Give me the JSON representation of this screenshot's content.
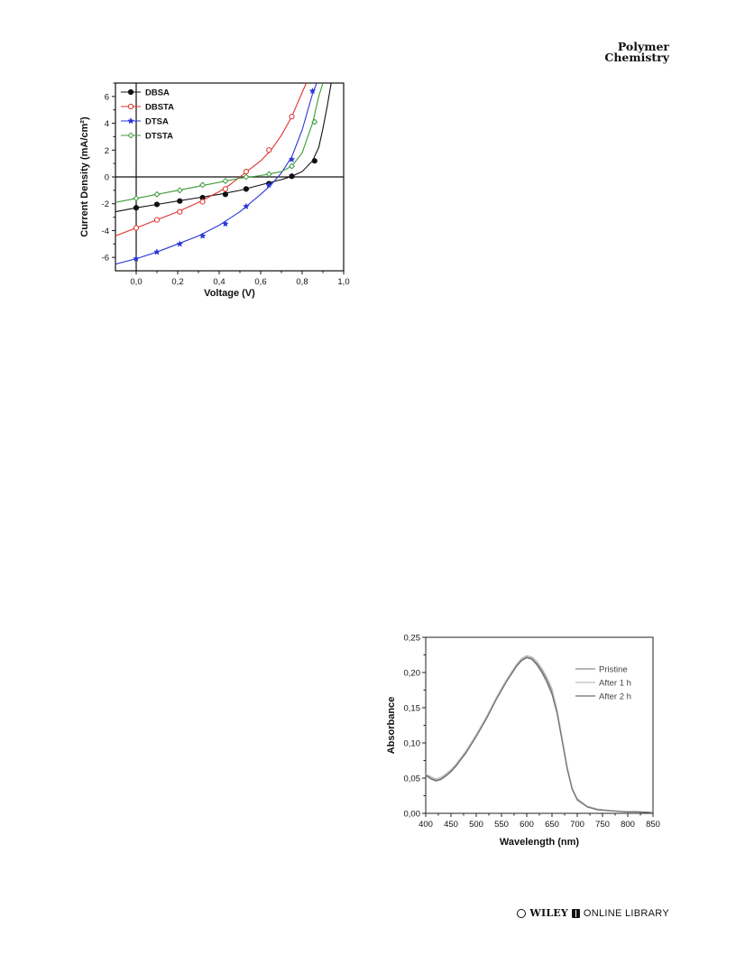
{
  "header": {
    "journal_line1": "Polymer",
    "journal_line2": "Chemistry"
  },
  "footer": {
    "publisher": "WILEY",
    "library": "ONLINE LIBRARY"
  },
  "chart_data": [
    {
      "type": "line",
      "xlabel": "Voltage (V)",
      "ylabel": "Current Density (mA/cm²)",
      "xlim": [
        -0.1,
        1.0
      ],
      "ylim": [
        -7,
        7
      ],
      "xticks": [
        "0,0",
        "0,2",
        "0,4",
        "0,6",
        "0,8",
        "1,0"
      ],
      "xtick_values": [
        0.0,
        0.2,
        0.4,
        0.6,
        0.8,
        1.0
      ],
      "yticks": [
        "-6",
        "-4",
        "-2",
        "0",
        "2",
        "4",
        "6"
      ],
      "ytick_values": [
        -6,
        -4,
        -2,
        0,
        2,
        4,
        6
      ],
      "legend_position": "top-left",
      "series": [
        {
          "name": "DBSA",
          "color": "#111111",
          "marker": "filled-circle",
          "x": [
            -0.1,
            0.0,
            0.1,
            0.2,
            0.3,
            0.4,
            0.5,
            0.6,
            0.65,
            0.7,
            0.75,
            0.8,
            0.85,
            0.88,
            0.9,
            0.92,
            0.94
          ],
          "y": [
            -2.6,
            -2.3,
            -2.05,
            -1.8,
            -1.55,
            -1.3,
            -1.0,
            -0.6,
            -0.4,
            -0.2,
            0.05,
            0.4,
            1.2,
            2.2,
            3.6,
            5.2,
            7.0
          ],
          "marker_x": [
            0.0,
            0.1,
            0.21,
            0.32,
            0.43,
            0.53,
            0.64,
            0.75,
            0.86
          ],
          "marker_y": [
            -2.3,
            -2.05,
            -1.8,
            -1.55,
            -1.3,
            -0.9,
            -0.5,
            0.05,
            1.2
          ]
        },
        {
          "name": "DBSTA",
          "color": "#e0312f",
          "marker": "open-circle",
          "x": [
            -0.1,
            0.0,
            0.1,
            0.2,
            0.3,
            0.4,
            0.45,
            0.5,
            0.55,
            0.6,
            0.65,
            0.7,
            0.75,
            0.8,
            0.82
          ],
          "y": [
            -4.4,
            -3.8,
            -3.2,
            -2.6,
            -1.9,
            -1.1,
            -0.6,
            0.0,
            0.6,
            1.2,
            2.0,
            3.1,
            4.5,
            6.3,
            7.0
          ],
          "marker_x": [
            0.0,
            0.1,
            0.21,
            0.32,
            0.43,
            0.53,
            0.64,
            0.75
          ],
          "marker_y": [
            -3.8,
            -3.2,
            -2.6,
            -1.85,
            -0.9,
            0.4,
            2.0,
            4.5
          ]
        },
        {
          "name": "DTSA",
          "color": "#2a36d8",
          "marker": "star",
          "x": [
            -0.1,
            0.0,
            0.1,
            0.2,
            0.3,
            0.4,
            0.5,
            0.6,
            0.65,
            0.7,
            0.75,
            0.8,
            0.85,
            0.87
          ],
          "y": [
            -6.5,
            -6.1,
            -5.6,
            -5.0,
            -4.4,
            -3.6,
            -2.6,
            -1.3,
            -0.6,
            0.3,
            1.5,
            3.5,
            6.2,
            7.0
          ],
          "marker_x": [
            0.0,
            0.1,
            0.21,
            0.32,
            0.43,
            0.53,
            0.64,
            0.75,
            0.85
          ],
          "marker_y": [
            -6.1,
            -5.6,
            -5.0,
            -4.4,
            -3.5,
            -2.2,
            -0.6,
            1.3,
            6.4
          ]
        },
        {
          "name": "DTSTA",
          "color": "#3f9a3a",
          "marker": "open-diamond",
          "x": [
            -0.1,
            0.0,
            0.1,
            0.2,
            0.3,
            0.4,
            0.5,
            0.6,
            0.7,
            0.75,
            0.8,
            0.85,
            0.88,
            0.9
          ],
          "y": [
            -1.9,
            -1.6,
            -1.3,
            -1.0,
            -0.7,
            -0.4,
            -0.1,
            0.1,
            0.4,
            0.8,
            1.8,
            4.0,
            6.0,
            7.0
          ],
          "marker_x": [
            0.0,
            0.1,
            0.21,
            0.32,
            0.43,
            0.53,
            0.64,
            0.75,
            0.86
          ],
          "marker_y": [
            -1.6,
            -1.3,
            -1.0,
            -0.6,
            -0.3,
            0.0,
            0.2,
            0.8,
            4.1
          ]
        }
      ]
    },
    {
      "type": "line",
      "xlabel": "Wavelength (nm)",
      "ylabel": "Absorbance",
      "xlim": [
        400,
        850
      ],
      "ylim": [
        0.0,
        0.25
      ],
      "xticks": [
        "400",
        "450",
        "500",
        "550",
        "600",
        "650",
        "700",
        "750",
        "800",
        "850"
      ],
      "xtick_values": [
        400,
        450,
        500,
        550,
        600,
        650,
        700,
        750,
        800,
        850
      ],
      "yticks": [
        "0,00",
        "0,05",
        "0,10",
        "0,15",
        "0,20",
        "0,25"
      ],
      "ytick_values": [
        0.0,
        0.05,
        0.1,
        0.15,
        0.2,
        0.25
      ],
      "legend_position": "top-right",
      "series": [
        {
          "name": "Pristine",
          "color": "#8a8a8a",
          "x": [
            400,
            410,
            420,
            430,
            440,
            450,
            460,
            480,
            500,
            520,
            540,
            560,
            580,
            590,
            600,
            610,
            620,
            630,
            640,
            650,
            660,
            670,
            680,
            690,
            700,
            720,
            740,
            760,
            780,
            800,
            820,
            850
          ],
          "y": [
            0.055,
            0.05,
            0.047,
            0.049,
            0.054,
            0.06,
            0.068,
            0.087,
            0.11,
            0.135,
            0.163,
            0.188,
            0.21,
            0.218,
            0.222,
            0.22,
            0.213,
            0.203,
            0.19,
            0.173,
            0.145,
            0.105,
            0.065,
            0.035,
            0.02,
            0.01,
            0.006,
            0.004,
            0.003,
            0.002,
            0.002,
            0.001
          ]
        },
        {
          "name": "After 1 h",
          "color": "#bdbdbd",
          "x": [
            400,
            410,
            420,
            430,
            440,
            450,
            460,
            480,
            500,
            520,
            540,
            560,
            580,
            590,
            600,
            610,
            620,
            630,
            640,
            650,
            660,
            670,
            680,
            690,
            700,
            720,
            740,
            760,
            780,
            800,
            820,
            850
          ],
          "y": [
            0.056,
            0.052,
            0.049,
            0.051,
            0.056,
            0.062,
            0.07,
            0.089,
            0.112,
            0.137,
            0.165,
            0.19,
            0.212,
            0.22,
            0.224,
            0.222,
            0.216,
            0.206,
            0.193,
            0.177,
            0.148,
            0.108,
            0.067,
            0.036,
            0.021,
            0.01,
            0.006,
            0.004,
            0.003,
            0.002,
            0.002,
            0.001
          ]
        },
        {
          "name": "After 2 h",
          "color": "#6d6d6d",
          "x": [
            400,
            410,
            420,
            430,
            440,
            450,
            460,
            480,
            500,
            520,
            540,
            560,
            580,
            590,
            600,
            610,
            620,
            630,
            640,
            650,
            660,
            670,
            680,
            690,
            700,
            720,
            740,
            760,
            780,
            800,
            820,
            850
          ],
          "y": [
            0.054,
            0.049,
            0.046,
            0.048,
            0.053,
            0.059,
            0.067,
            0.086,
            0.109,
            0.134,
            0.162,
            0.187,
            0.209,
            0.217,
            0.221,
            0.219,
            0.211,
            0.2,
            0.186,
            0.169,
            0.142,
            0.103,
            0.063,
            0.034,
            0.019,
            0.009,
            0.005,
            0.004,
            0.003,
            0.002,
            0.002,
            0.001
          ]
        }
      ]
    }
  ]
}
